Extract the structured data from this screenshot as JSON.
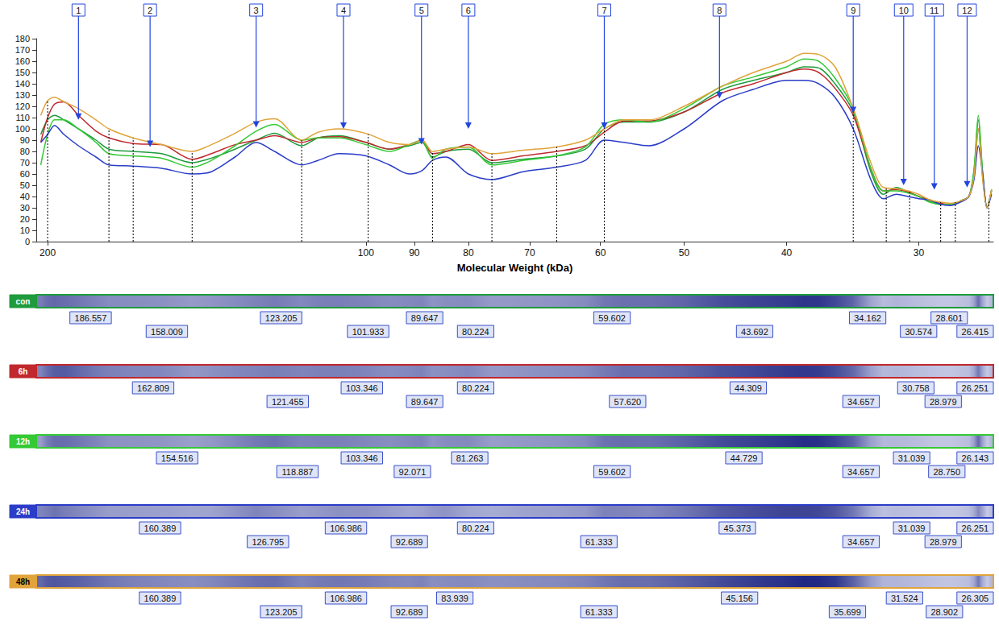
{
  "chart_data": {
    "type": "line",
    "x_label": "Molecular Weight (kDa)",
    "log": "x",
    "grid": false,
    "xlim": [
      205,
      25.5
    ],
    "xticks": [
      200,
      100,
      90,
      80,
      70,
      60,
      50,
      40,
      30
    ],
    "ylim": [
      0,
      180
    ],
    "yticks": [
      0,
      10,
      20,
      30,
      40,
      50,
      60,
      70,
      80,
      90,
      100,
      110,
      120,
      130,
      140,
      150,
      160,
      170,
      180
    ],
    "x": [
      203,
      200,
      197,
      193,
      187,
      180,
      175,
      166,
      156,
      146,
      140,
      133,
      127,
      122,
      115,
      111,
      106,
      100,
      95,
      91,
      88.5,
      86.5,
      84,
      80,
      76,
      71,
      66,
      62,
      59.5,
      57,
      54,
      50,
      46,
      43,
      40,
      38.5,
      37.3,
      36,
      34.6,
      33.3,
      32.4,
      31.5,
      30.7,
      30,
      29.3,
      28.6,
      28,
      27.4,
      26.9,
      26.6,
      26.35,
      26.1,
      25.85,
      25.6
    ],
    "series": [
      {
        "name": "con",
        "color": "#1e9b3c",
        "values": [
          95,
          108,
          112,
          108,
          100,
          90,
          82,
          80,
          78,
          70,
          74,
          82,
          90,
          96,
          85,
          92,
          94,
          88,
          82,
          85,
          88,
          75,
          80,
          82,
          70,
          73,
          76,
          82,
          100,
          106,
          106,
          115,
          135,
          143,
          150,
          155,
          154,
          140,
          115,
          62,
          42,
          48,
          44,
          40,
          36,
          33,
          33,
          36,
          40,
          62,
          108,
          60,
          30,
          45
        ],
        "bands": [
          186.557,
          158.009,
          123.205,
          101.933,
          89.647,
          80.224,
          59.602,
          43.692,
          34.162,
          30.574,
          28.601,
          26.415
        ]
      },
      {
        "name": "6h",
        "color": "#c0282d",
        "values": [
          88,
          110,
          122,
          124,
          112,
          98,
          92,
          87,
          86,
          73,
          78,
          86,
          90,
          94,
          88,
          92,
          93,
          88,
          82,
          86,
          90,
          78,
          80,
          86,
          72,
          76,
          80,
          85,
          97,
          107,
          107,
          115,
          132,
          140,
          150,
          153,
          150,
          136,
          112,
          65,
          45,
          46,
          44,
          40,
          37,
          34,
          33,
          36,
          40,
          60,
          100,
          58,
          30,
          46
        ],
        "bands": [
          162.809,
          121.455,
          103.346,
          89.647,
          80.224,
          {
            "value": 57.62,
            "label": "57.620"
          },
          44.309,
          34.657,
          30.758,
          28.979,
          26.251
        ]
      },
      {
        "name": "12h",
        "color": "#35c935",
        "values": [
          68,
          95,
          108,
          108,
          100,
          88,
          78,
          76,
          74,
          66,
          72,
          85,
          98,
          104,
          90,
          92,
          92,
          86,
          80,
          86,
          90,
          74,
          82,
          84,
          68,
          72,
          76,
          84,
          104,
          108,
          106,
          118,
          138,
          146,
          155,
          162,
          160,
          145,
          118,
          65,
          45,
          45,
          43,
          40,
          35,
          33,
          33,
          36,
          40,
          64,
          112,
          62,
          30,
          46
        ],
        "bands": [
          154.516,
          118.887,
          103.346,
          92.071,
          81.263,
          59.602,
          44.729,
          34.657,
          31.039,
          {
            "value": 28.75,
            "label": "28.750"
          },
          26.143
        ]
      },
      {
        "name": "24h",
        "color": "#2a3cc8",
        "values": [
          88,
          95,
          103,
          95,
          85,
          75,
          68,
          67,
          65,
          60,
          62,
          75,
          88,
          80,
          68,
          72,
          78,
          76,
          68,
          60,
          63,
          72,
          75,
          60,
          55,
          62,
          66,
          72,
          90,
          88,
          85,
          100,
          125,
          135,
          143,
          143,
          140,
          128,
          100,
          55,
          38,
          42,
          40,
          38,
          37,
          33,
          32,
          35,
          40,
          55,
          85,
          60,
          30,
          42
        ],
        "bands": [
          160.389,
          126.795,
          106.986,
          92.689,
          80.224,
          61.333,
          45.373,
          34.657,
          31.039,
          28.979,
          26.251
        ]
      },
      {
        "name": "48h",
        "color": "#e0a43a",
        "values": [
          112,
          125,
          128,
          124,
          118,
          108,
          100,
          92,
          86,
          80,
          86,
          96,
          106,
          109,
          90,
          97,
          100,
          96,
          88,
          86,
          90,
          80,
          82,
          84,
          78,
          81,
          84,
          90,
          100,
          108,
          108,
          120,
          138,
          150,
          160,
          167,
          166,
          155,
          118,
          70,
          48,
          47,
          45,
          42,
          37,
          35,
          34,
          36,
          40,
          58,
          100,
          55,
          30,
          46
        ],
        "bands": [
          160.389,
          123.205,
          106.986,
          92.689,
          83.939,
          61.333,
          45.156,
          35.699,
          31.524,
          28.902,
          26.305
        ]
      }
    ],
    "annotations": [
      {
        "label": "1",
        "x": 187,
        "y": 108
      },
      {
        "label": "2",
        "x": 160,
        "y": 84
      },
      {
        "label": "3",
        "x": 127,
        "y": 101
      },
      {
        "label": "4",
        "x": 105,
        "y": 100
      },
      {
        "label": "5",
        "x": 88.6,
        "y": 86
      },
      {
        "label": "6",
        "x": 80,
        "y": 100
      },
      {
        "label": "7",
        "x": 59.5,
        "y": 100
      },
      {
        "label": "8",
        "x": 46.3,
        "y": 127
      },
      {
        "label": "9",
        "x": 34.6,
        "y": 114
      },
      {
        "label": "10",
        "x": 31,
        "y": 50
      },
      {
        "label": "11",
        "x": 29,
        "y": 46
      },
      {
        "label": "12",
        "x": 27,
        "y": 48
      }
    ],
    "boundaries": [
      200,
      175,
      166,
      146,
      115,
      99.5,
      86.5,
      76,
      66,
      59.5,
      34.6,
      32.2,
      30.6,
      28.6,
      27.7,
      25.75
    ]
  }
}
